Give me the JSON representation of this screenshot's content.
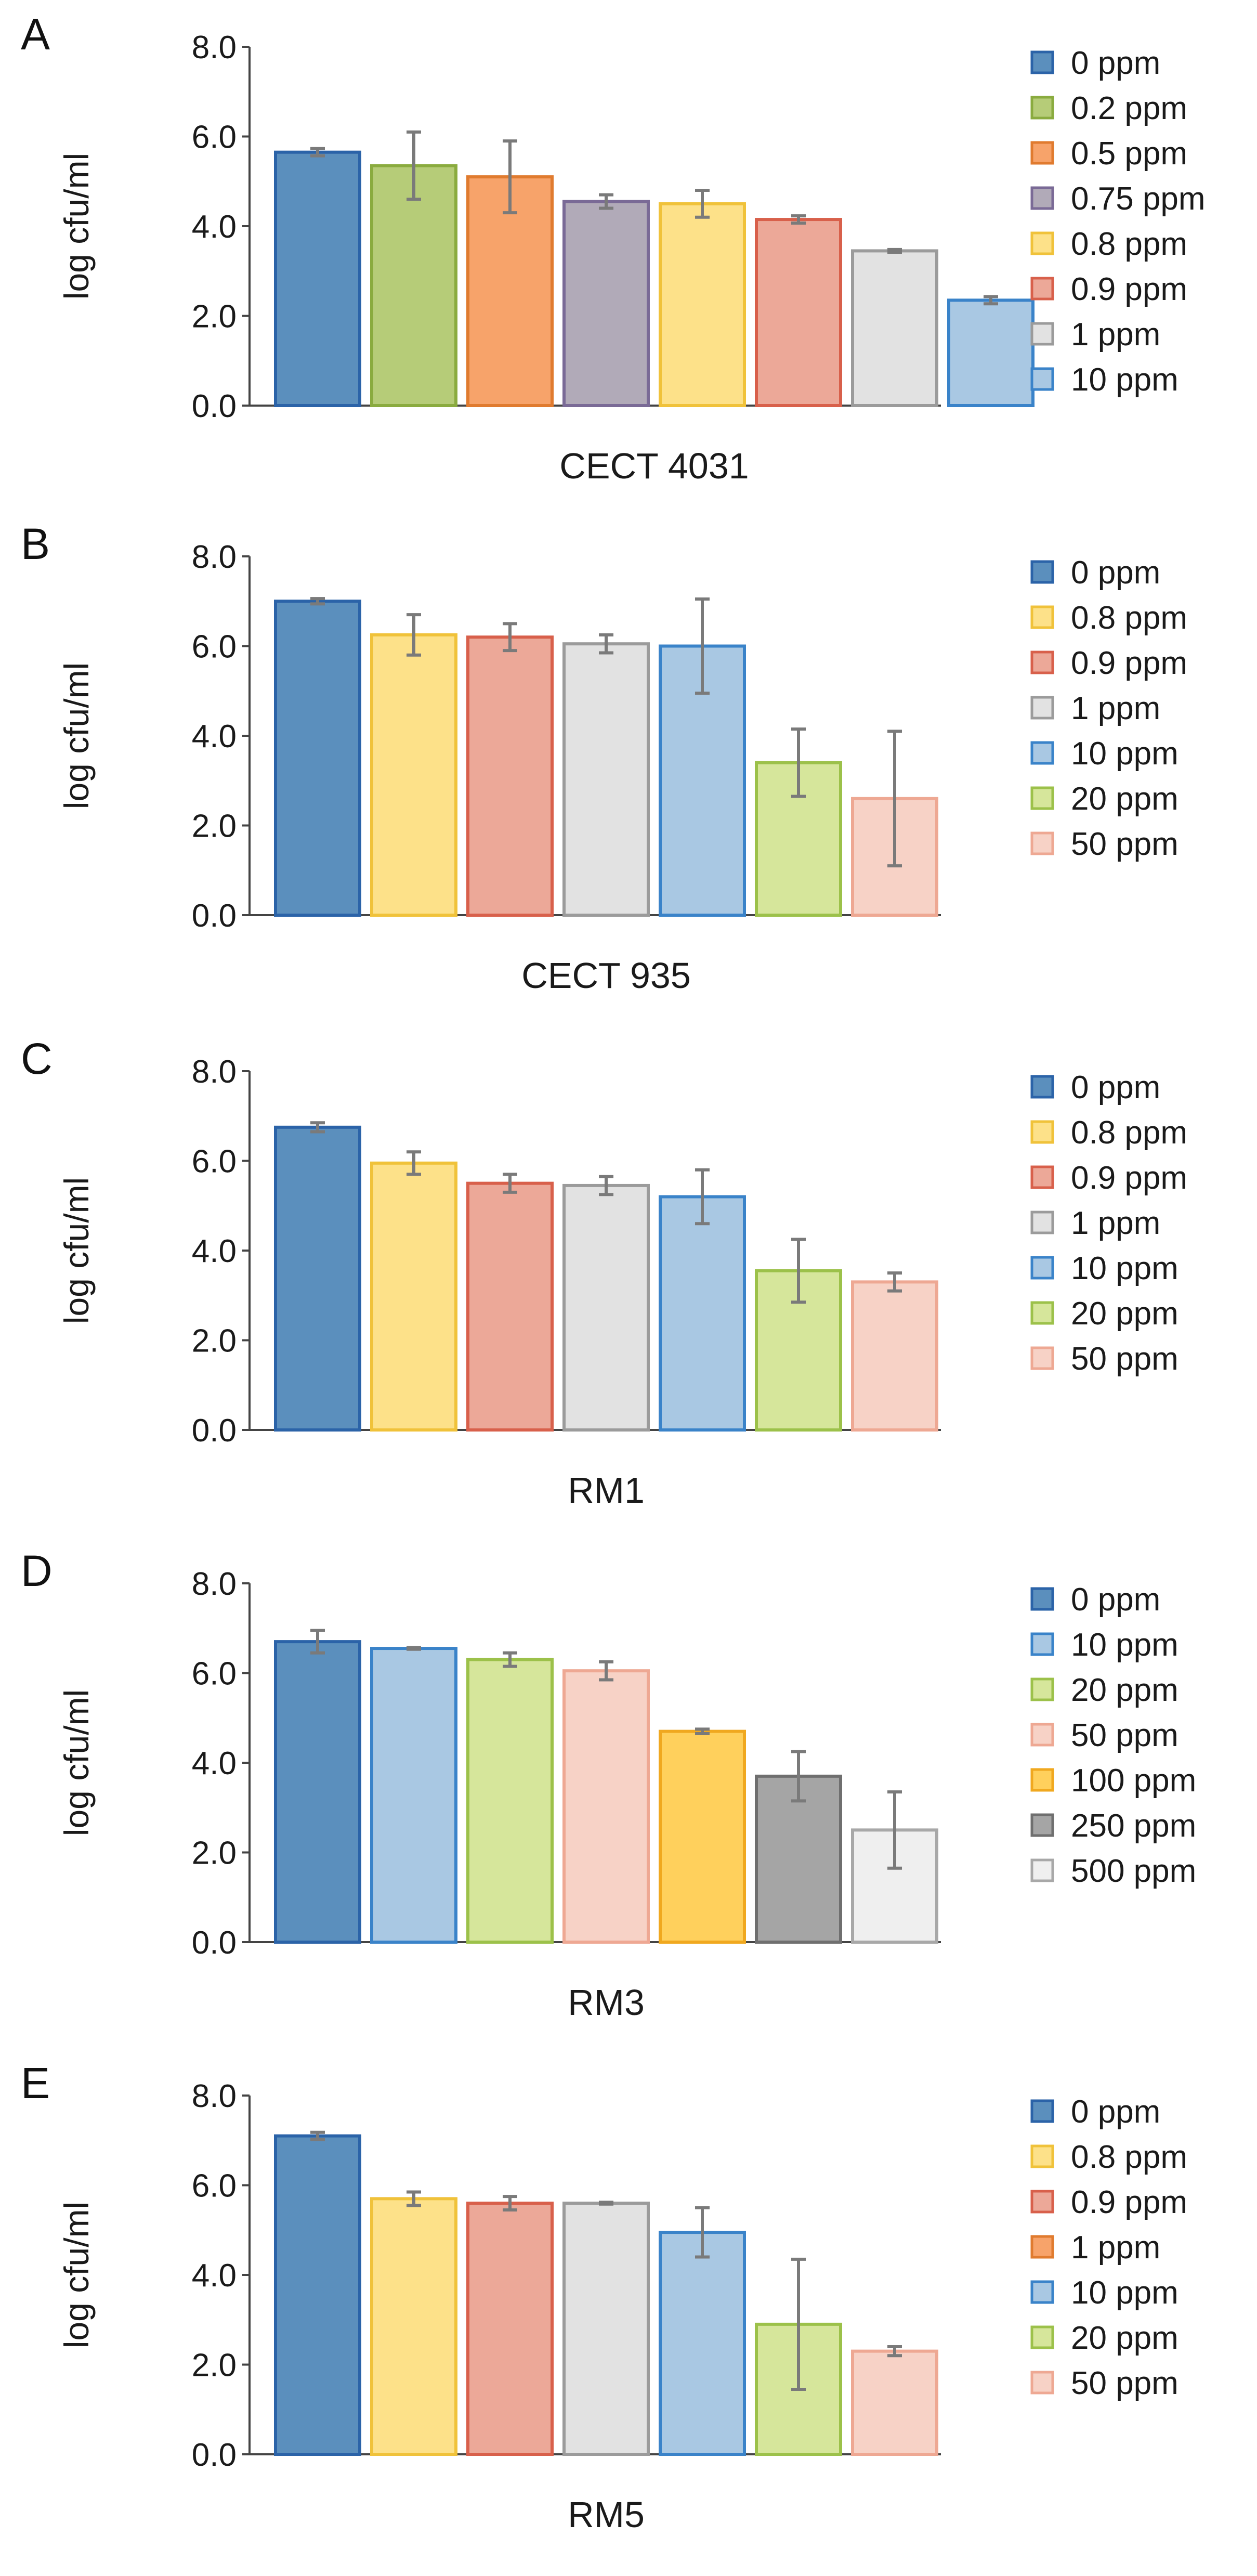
{
  "chart_data": [
    {
      "type": "bar",
      "panel": "A",
      "xlabel": "CECT 4031",
      "ylabel": "log cfu/ml",
      "ylim": [
        0,
        8
      ],
      "yticks": [
        "0.0",
        "2.0",
        "4.0",
        "6.0",
        "8.0"
      ],
      "grid": false,
      "legend_position": "right",
      "series": [
        {
          "name": "0 ppm",
          "value": 5.65,
          "error": 0.08,
          "color": "#5b8fbd",
          "edge": "#2b63a8"
        },
        {
          "name": "0.2 ppm",
          "value": 5.35,
          "error": 0.75,
          "color": "#b6cc78",
          "edge": "#8aab3f"
        },
        {
          "name": "0.5 ppm",
          "value": 5.1,
          "error": 0.8,
          "color": "#f7a36a",
          "edge": "#e07b2f"
        },
        {
          "name": "0.75 ppm",
          "value": 4.55,
          "error": 0.15,
          "color": "#b1aab8",
          "edge": "#7a6a96"
        },
        {
          "name": "0.8 ppm",
          "value": 4.5,
          "error": 0.3,
          "color": "#fde189",
          "edge": "#f0c23a"
        },
        {
          "name": "0.9 ppm",
          "value": 4.15,
          "error": 0.08,
          "color": "#eca898",
          "edge": "#d8604b"
        },
        {
          "name": "1 ppm",
          "value": 3.45,
          "error": 0.03,
          "color": "#e2e2e2",
          "edge": "#9b9b9b"
        },
        {
          "name": "10 ppm",
          "value": 2.35,
          "error": 0.08,
          "color": "#a9c8e3",
          "edge": "#3a83c9"
        }
      ]
    },
    {
      "type": "bar",
      "panel": "B",
      "xlabel": "CECT 935",
      "ylabel": "log cfu/ml",
      "ylim": [
        0,
        8
      ],
      "yticks": [
        "0.0",
        "2.0",
        "4.0",
        "6.0",
        "8.0"
      ],
      "grid": false,
      "legend_position": "right",
      "series": [
        {
          "name": "0 ppm",
          "value": 7.0,
          "error": 0.06,
          "color": "#5b8fbd",
          "edge": "#2b63a8"
        },
        {
          "name": "0.8 ppm",
          "value": 6.25,
          "error": 0.45,
          "color": "#fde189",
          "edge": "#f0c23a"
        },
        {
          "name": "0.9 ppm",
          "value": 6.2,
          "error": 0.3,
          "color": "#eca898",
          "edge": "#d8604b"
        },
        {
          "name": "1 ppm",
          "value": 6.05,
          "error": 0.2,
          "color": "#e2e2e2",
          "edge": "#9b9b9b"
        },
        {
          "name": "10 ppm",
          "value": 6.0,
          "error": 1.05,
          "color": "#a9c8e3",
          "edge": "#3a83c9"
        },
        {
          "name": "20 ppm",
          "value": 3.4,
          "error": 0.75,
          "color": "#d6e69b",
          "edge": "#9cc14a"
        },
        {
          "name": "50 ppm",
          "value": 2.6,
          "error": 1.5,
          "color": "#f7d2c6",
          "edge": "#eea893"
        }
      ]
    },
    {
      "type": "bar",
      "panel": "C",
      "xlabel": "RM1",
      "ylabel": "log cfu/ml",
      "ylim": [
        0,
        8
      ],
      "yticks": [
        "0.0",
        "2.0",
        "4.0",
        "6.0",
        "8.0"
      ],
      "grid": false,
      "legend_position": "right",
      "series": [
        {
          "name": "0 ppm",
          "value": 6.75,
          "error": 0.1,
          "color": "#5b8fbd",
          "edge": "#2b63a8"
        },
        {
          "name": "0.8 ppm",
          "value": 5.95,
          "error": 0.25,
          "color": "#fde189",
          "edge": "#f0c23a"
        },
        {
          "name": "0.9 ppm",
          "value": 5.5,
          "error": 0.2,
          "color": "#eca898",
          "edge": "#d8604b"
        },
        {
          "name": "1 ppm",
          "value": 5.45,
          "error": 0.2,
          "color": "#e2e2e2",
          "edge": "#9b9b9b"
        },
        {
          "name": "10 ppm",
          "value": 5.2,
          "error": 0.6,
          "color": "#a9c8e3",
          "edge": "#3a83c9"
        },
        {
          "name": "20 ppm",
          "value": 3.55,
          "error": 0.7,
          "color": "#d6e69b",
          "edge": "#9cc14a"
        },
        {
          "name": "50 ppm",
          "value": 3.3,
          "error": 0.2,
          "color": "#f7d2c6",
          "edge": "#eea893"
        }
      ]
    },
    {
      "type": "bar",
      "panel": "D",
      "xlabel": "RM3",
      "ylabel": "log cfu/ml",
      "ylim": [
        0,
        8
      ],
      "yticks": [
        "0.0",
        "2.0",
        "4.0",
        "6.0",
        "8.0"
      ],
      "grid": false,
      "legend_position": "right",
      "series": [
        {
          "name": "0 ppm",
          "value": 6.7,
          "error": 0.25,
          "color": "#5b8fbd",
          "edge": "#2b63a8"
        },
        {
          "name": "10 ppm",
          "value": 6.55,
          "error": 0.02,
          "color": "#a9c8e3",
          "edge": "#3a83c9"
        },
        {
          "name": "20 ppm",
          "value": 6.3,
          "error": 0.15,
          "color": "#d6e69b",
          "edge": "#9cc14a"
        },
        {
          "name": "50 ppm",
          "value": 6.05,
          "error": 0.2,
          "color": "#f7d2c6",
          "edge": "#eea893"
        },
        {
          "name": "100 ppm",
          "value": 4.7,
          "error": 0.05,
          "color": "#ffd05c",
          "edge": "#f0a81f"
        },
        {
          "name": "250 ppm",
          "value": 3.7,
          "error": 0.55,
          "color": "#a5a5a5",
          "edge": "#6f6f6f"
        },
        {
          "name": "500 ppm",
          "value": 2.5,
          "error": 0.85,
          "color": "#efefef",
          "edge": "#a8a8a8"
        }
      ]
    },
    {
      "type": "bar",
      "panel": "E",
      "xlabel": "RM5",
      "ylabel": "log cfu/ml",
      "ylim": [
        0,
        8
      ],
      "yticks": [
        "0.0",
        "2.0",
        "4.0",
        "6.0",
        "8.0"
      ],
      "grid": false,
      "legend_position": "right",
      "series": [
        {
          "name": "0 ppm",
          "value": 7.1,
          "error": 0.08,
          "color": "#5b8fbd",
          "edge": "#2b63a8"
        },
        {
          "name": "0.8 ppm",
          "value": 5.7,
          "error": 0.15,
          "color": "#fde189",
          "edge": "#f0c23a"
        },
        {
          "name": "0.9 ppm",
          "value": 5.6,
          "error": 0.15,
          "color": "#eca898",
          "edge": "#d8604b"
        },
        {
          "name": "1 ppm",
          "value": 5.6,
          "error": 0.02,
          "color": "#e2e2e2",
          "edge": "#9b9b9b"
        },
        {
          "name": "10 ppm",
          "value": 4.95,
          "error": 0.55,
          "color": "#a9c8e3",
          "edge": "#3a83c9"
        },
        {
          "name": "20 ppm",
          "value": 2.9,
          "error": 1.45,
          "color": "#d6e69b",
          "edge": "#9cc14a"
        },
        {
          "name": "50 ppm",
          "value": 2.3,
          "error": 0.1,
          "color": "#f7d2c6",
          "edge": "#eea893"
        }
      ],
      "legend_colors": [
        {
          "name": "0 ppm",
          "color": "#5b8fbd",
          "edge": "#2b63a8"
        },
        {
          "name": "0.8 ppm",
          "color": "#fde189",
          "edge": "#f0c23a"
        },
        {
          "name": "0.9 ppm",
          "color": "#eca898",
          "edge": "#d8604b"
        },
        {
          "name": "1 ppm",
          "color": "#f7a36a",
          "edge": "#e07b2f"
        },
        {
          "name": "10 ppm",
          "color": "#a9c8e3",
          "edge": "#3a83c9"
        },
        {
          "name": "20 ppm",
          "color": "#d6e69b",
          "edge": "#9cc14a"
        },
        {
          "name": "50 ppm",
          "color": "#f7d2c6",
          "edge": "#eea893"
        }
      ]
    }
  ]
}
